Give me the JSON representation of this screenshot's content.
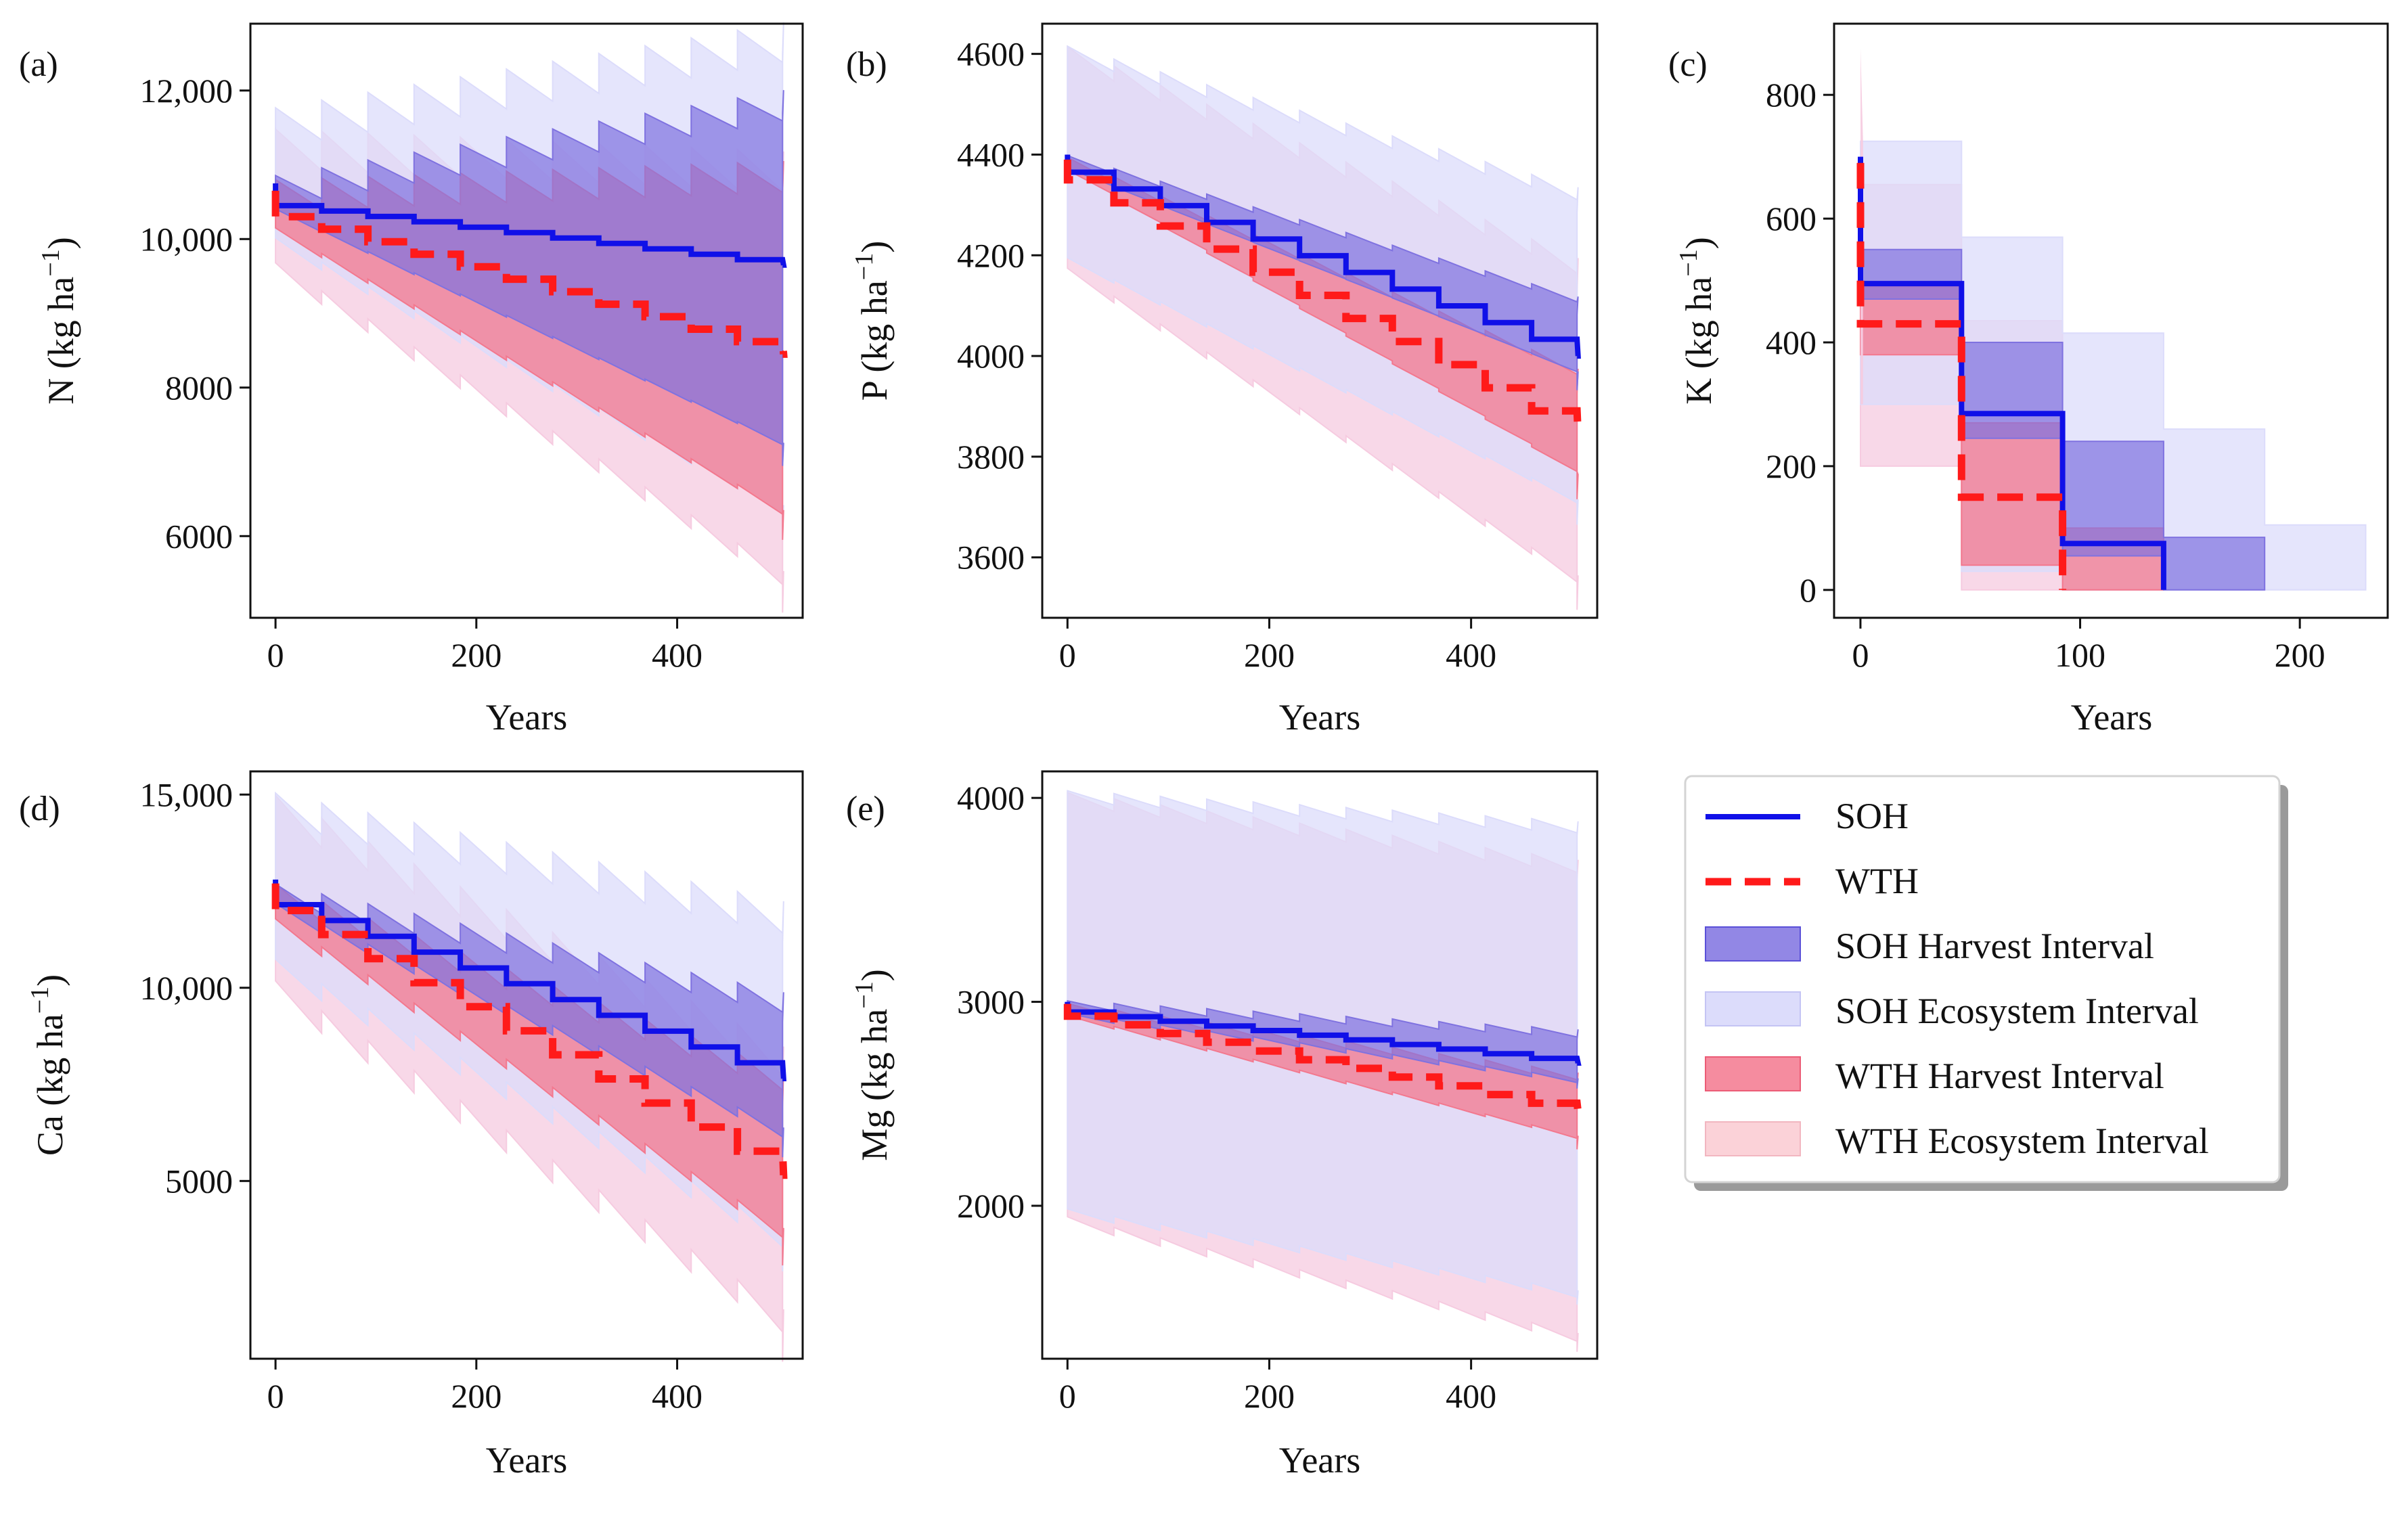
{
  "figure": {
    "legend": {
      "soh_line": "SOH",
      "wth_line": "WTH",
      "soh_harvest": "SOH Harvest Interval",
      "soh_ecosystem": "SOH Ecosystem Interval",
      "wth_harvest": "WTH Harvest Interval",
      "wth_ecosystem": "WTH Ecosystem Interval"
    },
    "colors": {
      "soh": "#1010e8",
      "wth": "#ff1a1a",
      "soh_harvest_fill": "#7f72e0",
      "soh_ecosystem_fill": "#dcdcfb",
      "wth_harvest_fill": "#f3788e",
      "wth_ecosystem_fill": "#f6cbe0"
    }
  },
  "chart_data": [
    {
      "type": "line",
      "panel": "(a)",
      "ylabel_main": "N (kg ha",
      "ylabel_sup": "−1",
      "ylabel_close": ")",
      "xlabel": "Years",
      "xlim": [
        -25,
        525
      ],
      "ylim": [
        4900,
        12900
      ],
      "xticks": [
        0,
        200,
        400
      ],
      "xtick_labels": [
        "0",
        "200",
        "400"
      ],
      "yticks": [
        6000,
        8000,
        10000,
        12000
      ],
      "ytick_labels": [
        "6000",
        "8000",
        "10,000",
        "12,000"
      ],
      "period": 46,
      "end": 505,
      "soh": {
        "start": 10750,
        "line": [
          10450,
          9650
        ],
        "harvest": {
          "lo": [
            10250,
            7100
          ],
          "hi": [
            10700,
            11850
          ]
        },
        "ecosystem": {
          "lo": [
            9800,
            6200
          ],
          "hi": [
            11550,
            12700
          ]
        },
        "drop": 130
      },
      "wth": {
        "start": 10650,
        "line": [
          10300,
          8450
        ],
        "harvest": {
          "lo": [
            9950,
            6150
          ],
          "hi": [
            10600,
            10850
          ]
        },
        "ecosystem": {
          "lo": [
            9400,
            5250
          ],
          "hi": [
            11200,
            10900
          ]
        },
        "drop": 190
      }
    },
    {
      "type": "line",
      "panel": "(b)",
      "ylabel_main": "P (kg ha",
      "ylabel_sup": "−1",
      "ylabel_close": ")",
      "xlabel": "Years",
      "xlim": [
        -25,
        525
      ],
      "ylim": [
        3480,
        4660
      ],
      "xticks": [
        0,
        200,
        400
      ],
      "xtick_labels": [
        "0",
        "200",
        "400"
      ],
      "yticks": [
        3600,
        3800,
        4000,
        4200,
        4400,
        4600
      ],
      "ytick_labels": [
        "3600",
        "3800",
        "4000",
        "4200",
        "4400",
        "4600"
      ],
      "period": 46,
      "end": 505,
      "soh": {
        "start": 4400,
        "line": [
          4365,
          4000
        ],
        "harvest": {
          "lo": [
            4355,
            3950
          ],
          "hi": [
            4380,
            4100
          ]
        },
        "ecosystem": {
          "lo": [
            4170,
            3690
          ],
          "hi": [
            4590,
            4310
          ]
        },
        "drop": 15
      },
      "wth": {
        "start": 4390,
        "line": [
          4350,
          3845
        ],
        "harvest": {
          "lo": [
            4345,
            3740
          ],
          "hi": [
            4370,
            3950
          ]
        },
        "ecosystem": {
          "lo": [
            4140,
            3530
          ],
          "hi": [
            4580,
            4160
          ]
        },
        "drop": 25
      }
    },
    {
      "type": "line",
      "panel": "(c)",
      "ylabel_main": "K (kg ha",
      "ylabel_sup": "−1",
      "ylabel_close": ")",
      "xlabel": "Years",
      "xlim": [
        -12,
        240
      ],
      "ylim": [
        -45,
        915
      ],
      "xticks": [
        0,
        100,
        200
      ],
      "xtick_labels": [
        "0",
        "100",
        "200"
      ],
      "yticks": [
        0,
        200,
        400,
        600,
        800
      ],
      "ytick_labels": [
        "0",
        "200",
        "400",
        "600",
        "800"
      ],
      "steps": [
        0,
        46,
        92,
        138,
        184,
        230
      ],
      "soh": {
        "peak": 700,
        "line": [
          495,
          285,
          75
        ],
        "line_end": 138,
        "harvest_lo": [
          470,
          245,
          55,
          0
        ],
        "harvest_hi": [
          550,
          400,
          240,
          85
        ],
        "harvest_end": 184,
        "eco_lo": [
          300,
          30,
          0,
          0,
          0
        ],
        "eco_hi": [
          725,
          570,
          415,
          260,
          105
        ],
        "eco_end": 230
      },
      "wth": {
        "peak": 690,
        "line": [
          430,
          150
        ],
        "line_end": 92,
        "harvest_lo": [
          380,
          40,
          0
        ],
        "harvest_hi": [
          490,
          270,
          100
        ],
        "harvest_end": 138,
        "eco_lo": [
          200,
          0,
          0
        ],
        "eco_hi": [
          655,
          435,
          0
        ],
        "eco_end": 138
      }
    },
    {
      "type": "line",
      "panel": "(d)",
      "ylabel_main": "Ca (kg ha",
      "ylabel_sup": "−1",
      "ylabel_close": ")",
      "xlabel": "Years",
      "xlim": [
        -25,
        525
      ],
      "ylim": [
        400,
        15600
      ],
      "xticks": [
        0,
        200,
        400
      ],
      "xtick_labels": [
        "0",
        "200",
        "400"
      ],
      "yticks": [
        5000,
        10000,
        15000
      ],
      "ytick_labels": [
        "5000",
        "10,000",
        "15,000"
      ],
      "period": 46,
      "end": 505,
      "soh": {
        "start": 12800,
        "line": [
          12150,
          7650
        ],
        "harvest": {
          "lo": [
            11800,
            6000
          ],
          "hi": [
            12300,
            9500
          ]
        },
        "ecosystem": {
          "lo": [
            10200,
            3200
          ],
          "hi": [
            14500,
            11700
          ]
        },
        "drop": 380
      },
      "wth": {
        "start": 12700,
        "line": [
          12000,
          5150
        ],
        "harvest": {
          "lo": [
            11300,
            3300
          ],
          "hi": [
            12200,
            7400
          ]
        },
        "ecosystem": {
          "lo": [
            9500,
            1000
          ],
          "hi": [
            14300,
            7800
          ]
        },
        "drop": 550
      }
    },
    {
      "type": "line",
      "panel": "(e)",
      "ylabel_main": "Mg (kg ha",
      "ylabel_sup": "−1",
      "ylabel_close": ")",
      "xlabel": "Years",
      "xlim": [
        -25,
        525
      ],
      "ylim": [
        1250,
        4130
      ],
      "xticks": [
        0,
        200,
        400
      ],
      "xtick_labels": [
        "0",
        "200",
        "400"
      ],
      "yticks": [
        2000,
        3000,
        4000
      ],
      "ytick_labels": [
        "2000",
        "3000",
        "4000"
      ],
      "period": 46,
      "end": 505,
      "soh": {
        "start": 3000,
        "line": [
          2950,
          2700
        ],
        "harvest": {
          "lo": [
            2920,
            2600
          ],
          "hi": [
            2980,
            2840
          ]
        },
        "ecosystem": {
          "lo": [
            1950,
            1550
          ],
          "hi": [
            4000,
            3850
          ]
        },
        "drop": 20
      },
      "wth": {
        "start": 2990,
        "line": [
          2930,
          2460
        ],
        "harvest": {
          "lo": [
            2900,
            2310
          ],
          "hi": [
            2960,
            2620
          ]
        },
        "ecosystem": {
          "lo": [
            1900,
            1330
          ],
          "hi": [
            3980,
            3650
          ]
        },
        "drop": 30
      }
    }
  ]
}
